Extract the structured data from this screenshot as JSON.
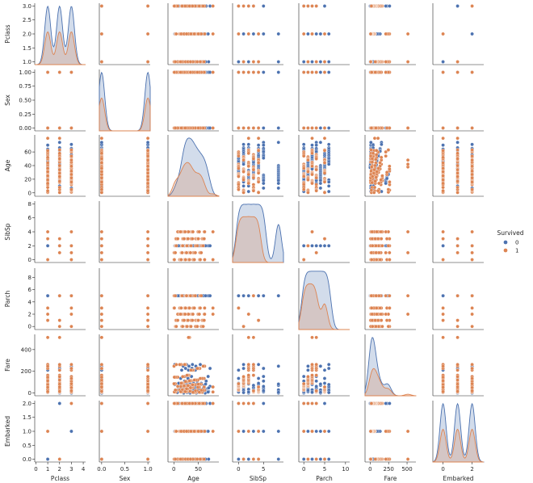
{
  "chart_data": {
    "type": "pairplot",
    "hue": "Survived",
    "variables": [
      {
        "name": "Pclass",
        "ticks": [
          0,
          1,
          2,
          3,
          4
        ],
        "yticks": [
          1.0,
          1.5,
          2.0,
          2.5,
          3.0
        ],
        "xticklabels": [
          "0",
          "1",
          "2",
          "3",
          "4"
        ],
        "yticklabels": [
          "1.0",
          "1.5",
          "2.0",
          "2.5",
          "3.0"
        ],
        "xlim": [
          -0.1,
          4.2
        ],
        "ylim": [
          0.9,
          3.1
        ],
        "values": {
          "0": [
            1,
            2,
            3
          ],
          "1": [
            1,
            2,
            3
          ]
        }
      },
      {
        "name": "Sex",
        "ticks": [
          0.0,
          0.5,
          1.0
        ],
        "yticks": [
          0.0,
          0.25,
          0.5,
          0.75,
          1.0
        ],
        "xticklabels": [
          "0.0",
          "0.5",
          "1.0"
        ],
        "yticklabels": [
          "0.00",
          "0.25",
          "0.50",
          "0.75",
          "1.00"
        ],
        "xlim": [
          -0.05,
          1.05
        ],
        "ylim": [
          -0.05,
          1.05
        ],
        "values": {
          "0": [
            0,
            1
          ],
          "1": [
            0,
            1
          ]
        }
      },
      {
        "name": "Age",
        "ticks": [
          0,
          50
        ],
        "yticks": [
          0,
          20,
          40,
          60
        ],
        "xticklabels": [
          "0",
          "50"
        ],
        "yticklabels": [
          "0",
          "20",
          "40",
          "60"
        ],
        "xlim": [
          -12,
          92
        ],
        "ylim": [
          -5,
          85
        ],
        "values": {
          "0": [
            2,
            7,
            10,
            14,
            16,
            18,
            19,
            20,
            21,
            22,
            23,
            24,
            25,
            26,
            27,
            28,
            29,
            30,
            31,
            32,
            33,
            34,
            35,
            36,
            37,
            38,
            39,
            40,
            41,
            42,
            44,
            45,
            46,
            47,
            48,
            50,
            51,
            52,
            54,
            55,
            56,
            58,
            60,
            61,
            62,
            64,
            65,
            66,
            70,
            71,
            74
          ],
          "1": [
            0.4,
            1,
            3,
            4,
            5,
            8,
            12,
            14,
            15,
            16,
            17,
            18,
            19,
            21,
            22,
            23,
            24,
            25,
            26,
            27,
            28,
            29,
            30,
            31,
            32,
            33,
            34,
            35,
            36,
            38,
            39,
            40,
            42,
            44,
            45,
            48,
            49,
            50,
            52,
            53,
            54,
            56,
            58,
            60,
            62,
            63,
            80
          ]
        }
      },
      {
        "name": "SibSp",
        "ticks": [
          0,
          5
        ],
        "yticks": [
          0,
          2,
          4,
          6,
          8
        ],
        "xticklabels": [
          "0",
          "5"
        ],
        "yticklabels": [
          "0",
          "2",
          "4",
          "6",
          "8"
        ],
        "xlim": [
          -1.2,
          9
        ],
        "ylim": [
          -0.4,
          8.4
        ],
        "values": {
          "0": [
            0,
            1,
            2,
            3,
            4,
            5,
            8
          ],
          "1": [
            0,
            1,
            2,
            3,
            4
          ]
        }
      },
      {
        "name": "Parch",
        "ticks": [
          0,
          5,
          10
        ],
        "yticks": [
          0,
          2,
          4,
          6,
          8
        ],
        "xticklabels": [
          "0",
          "5",
          "10"
        ],
        "yticklabels": [
          "0",
          "2",
          "4",
          "6",
          "8"
        ],
        "xlim": [
          -1.2,
          11
        ],
        "ylim": [
          -0.5,
          9.5
        ],
        "values": {
          "0": [
            0,
            1,
            2,
            3,
            4,
            5,
            6
          ],
          "1": [
            0,
            1,
            2,
            3,
            5
          ]
        }
      },
      {
        "name": "Fare",
        "ticks": [
          0,
          250,
          500
        ],
        "yticks": [
          0,
          200,
          400
        ],
        "xticklabels": [
          "0",
          "250",
          "500"
        ],
        "yticklabels": [
          "0",
          "200",
          "400"
        ],
        "xlim": [
          -70,
          620
        ],
        "ylim": [
          -25,
          540
        ],
        "values": {
          "0": [
            0,
            5,
            7,
            8,
            9,
            10,
            13,
            15,
            21,
            26,
            27,
            29,
            30,
            35,
            40,
            47,
            52,
            61,
            71,
            78,
            83,
            90,
            110,
            135,
            153,
            211,
            227,
            247,
            263
          ],
          "1": [
            7,
            8,
            10,
            12,
            13,
            16,
            20,
            26,
            27,
            31,
            39,
            49,
            53,
            56,
            61,
            66,
            69,
            77,
            81,
            86,
            91,
            106,
            113,
            120,
            134,
            146,
            151,
            164,
            211,
            227,
            247,
            262,
            263,
            512
          ]
        }
      },
      {
        "name": "Embarked",
        "ticks": [
          0,
          2
        ],
        "yticks": [
          0.0,
          0.5,
          1.0,
          1.5,
          2.0
        ],
        "xticklabels": [
          "0",
          "2"
        ],
        "yticklabels": [
          "0.0",
          "0.5",
          "1.0",
          "1.5",
          "2.0"
        ],
        "xlim": [
          -0.7,
          2.8
        ],
        "ylim": [
          -0.1,
          2.1
        ],
        "values": {
          "0": [
            0,
            1,
            2
          ],
          "1": [
            0,
            1,
            2
          ]
        }
      }
    ],
    "legend": {
      "title": "Survived",
      "entries": [
        {
          "label": "0",
          "color": "#4c72b0"
        },
        {
          "label": "1",
          "color": "#dd8452"
        }
      ],
      "placement": "center-right"
    },
    "colors": {
      "0": "#4c72b0",
      "1": "#dd8452"
    }
  }
}
